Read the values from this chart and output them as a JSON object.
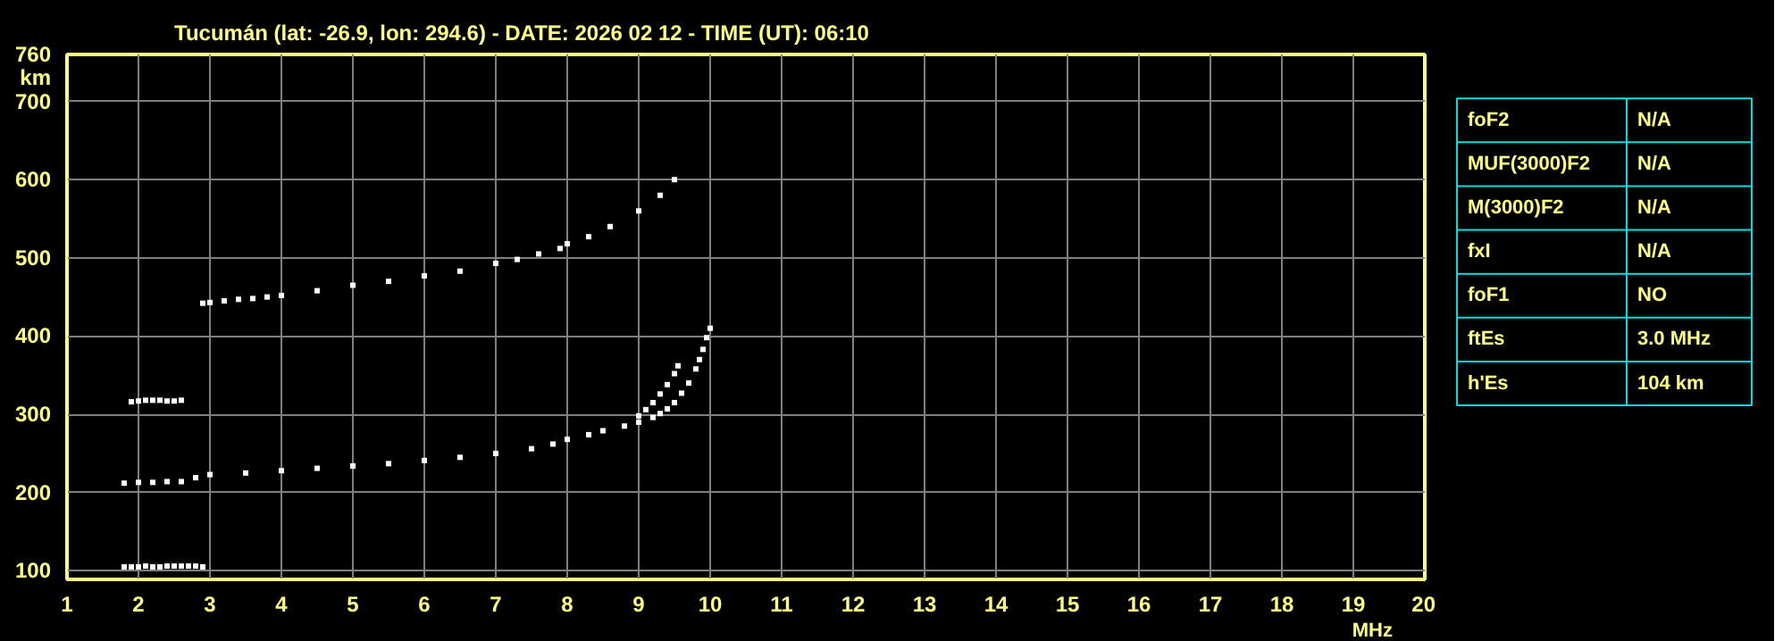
{
  "chart_data": [
    {
      "type": "scatter",
      "title": "Tucumán (lat: -26.9, lon: 294.6) - DATE: 2026 02 12 - TIME (UT): 06:10",
      "xlabel": "MHz",
      "ylabel": "km",
      "marker": "square",
      "grid": true,
      "xlim": [
        1,
        20
      ],
      "ylim": [
        89,
        760
      ],
      "xticks": [
        1,
        2,
        3,
        4,
        5,
        6,
        7,
        8,
        9,
        10,
        11,
        12,
        13,
        14,
        15,
        16,
        17,
        18,
        19,
        20
      ],
      "yticks": [
        100,
        200,
        300,
        400,
        500,
        600,
        700,
        760
      ],
      "series": [
        {
          "color": "#ffffff",
          "x": [
            1.8,
            1.9,
            2.0,
            2.1,
            2.2,
            2.3,
            2.4,
            2.5,
            2.6,
            2.7,
            2.8,
            2.9
          ],
          "values": [
            105,
            105,
            105,
            106,
            105,
            105,
            106,
            106,
            106,
            106,
            106,
            105
          ]
        },
        {
          "color": "#ffffff",
          "x": [
            1.9,
            2.0,
            2.1,
            2.2,
            2.3,
            2.4,
            2.5,
            2.6
          ],
          "values": [
            316,
            317,
            318,
            318,
            318,
            317,
            317,
            318
          ]
        },
        {
          "color": "#ffffff",
          "x": [
            1.8,
            2.0,
            2.2,
            2.4,
            2.6,
            2.8,
            3.0,
            3.5,
            4.0,
            4.5,
            5.0,
            5.5,
            6.0,
            6.5,
            7.0,
            7.5,
            7.8,
            8.0,
            8.3,
            8.5,
            8.8,
            9.0,
            9.2,
            9.3,
            9.4,
            9.5,
            9.6,
            9.7,
            9.8,
            9.85,
            9.9,
            9.95,
            10.0
          ],
          "values": [
            212,
            213,
            213,
            214,
            214,
            219,
            223,
            225,
            228,
            231,
            234,
            237,
            241,
            245,
            250,
            256,
            262,
            268,
            274,
            279,
            285,
            290,
            296,
            301,
            307,
            315,
            327,
            340,
            358,
            370,
            383,
            398,
            410
          ]
        },
        {
          "color": "#ffffff",
          "x": [
            9.0,
            9.1,
            9.2,
            9.3,
            9.4,
            9.5,
            9.55
          ],
          "values": [
            298,
            306,
            315,
            326,
            338,
            352,
            362
          ]
        },
        {
          "color": "#ffffff",
          "x": [
            2.9,
            3.0,
            3.2,
            3.4,
            3.6,
            3.8,
            4.0,
            4.5,
            5.0,
            5.5,
            6.0,
            6.5,
            7.0,
            7.3,
            7.6,
            7.9,
            8.0,
            8.3,
            8.6,
            9.0,
            9.3,
            9.5
          ],
          "values": [
            442,
            443,
            445,
            447,
            448,
            450,
            452,
            458,
            465,
            470,
            477,
            483,
            493,
            498,
            505,
            512,
            518,
            527,
            540,
            560,
            580,
            600
          ]
        }
      ]
    },
    {
      "type": "other",
      "annotations": [
        "foF2",
        "N/A",
        "MUF(3000)F2",
        "N/A",
        "M(3000)F2",
        "N/A",
        "fxI",
        "N/A",
        "foF1",
        "NO",
        "ftEs",
        "3.0 MHz",
        "h'Es",
        "104 km"
      ]
    }
  ]
}
